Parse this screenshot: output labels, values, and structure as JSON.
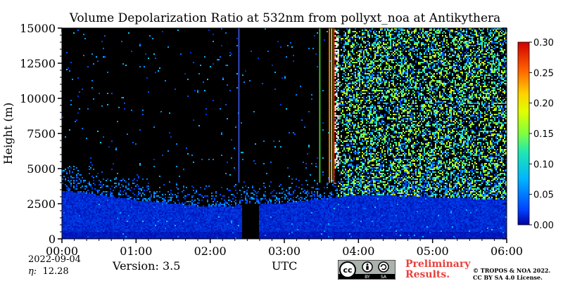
{
  "chart_data": {
    "type": "heatmap",
    "title": "Volume Depolarization Ratio at 532nm from pollyxt_noa at Antikythera",
    "xlabel": "UTC",
    "ylabel": "Height (m)",
    "x_ticks": [
      "00:00",
      "01:00",
      "02:00",
      "03:00",
      "04:00",
      "05:00",
      "06:00"
    ],
    "y_ticks": [
      0,
      2500,
      5000,
      7500,
      10000,
      12500,
      15000
    ],
    "x_range_hours": [
      0,
      6
    ],
    "ylim": [
      0,
      15000
    ],
    "colorbar": {
      "min": 0.0,
      "max": 0.3,
      "ticks": [
        "0.00",
        "0.05",
        "0.10",
        "0.15",
        "0.20",
        "0.25",
        "0.30"
      ],
      "colormap": [
        "#0000a0",
        "#0050ff",
        "#00c8ff",
        "#40ff80",
        "#c0ff00",
        "#ffff00",
        "#ff8000",
        "#ff0000",
        "#b00000"
      ]
    },
    "background_color": "#000000",
    "features": {
      "boundary_layer": {
        "value": 0.02,
        "description_top_m": [
          3500,
          2800,
          2300,
          2600,
          3200,
          3000,
          2800
        ]
      },
      "no_data_gap": {
        "start_h": 2.42,
        "end_h": 2.65,
        "below_m": 2600
      },
      "blue_line_h": 2.38,
      "color_stripes_h": [
        3.47,
        3.6,
        3.63,
        3.66
      ],
      "noisy_region_start_h": 3.68
    }
  },
  "footer": {
    "date": "2022-09-04",
    "eta_symbol": "η:",
    "eta_value": "12.28",
    "version": "Version: 3.5",
    "preliminary": "Preliminary\nResults.",
    "copyright": "© TROPOS & NOA 2022.\nCC BY SA 4.0 License.",
    "cc_labels": [
      "BY",
      "SA"
    ]
  }
}
